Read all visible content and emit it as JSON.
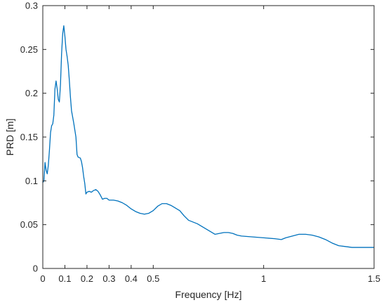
{
  "chart_data": {
    "type": "line",
    "xlabel": "Frequency [Hz]",
    "ylabel": "PRD [m]",
    "xlim": [
      0,
      1.5
    ],
    "ylim": [
      0,
      0.3
    ],
    "x_ticks": [
      {
        "value": 0,
        "label": "0"
      },
      {
        "value": 0.1,
        "label": "0.1"
      },
      {
        "value": 0.2,
        "label": "0.2"
      },
      {
        "value": 0.3,
        "label": "0.3"
      },
      {
        "value": 0.4,
        "label": "0.4"
      },
      {
        "value": 0.5,
        "label": "0.5"
      },
      {
        "value": 1,
        "label": "1"
      },
      {
        "value": 1.5,
        "label": "1.5"
      }
    ],
    "y_ticks": [
      {
        "value": 0,
        "label": "0"
      },
      {
        "value": 0.05,
        "label": "0.05"
      },
      {
        "value": 0.1,
        "label": "0.1"
      },
      {
        "value": 0.15,
        "label": "0.15"
      },
      {
        "value": 0.2,
        "label": "0.2"
      },
      {
        "value": 0.25,
        "label": "0.25"
      },
      {
        "value": 0.3,
        "label": "0.3"
      }
    ],
    "grid": false,
    "legend": "none",
    "series": [
      {
        "color": "#0072BD",
        "points": [
          [
            0.0,
            0.098
          ],
          [
            0.005,
            0.1
          ],
          [
            0.01,
            0.121
          ],
          [
            0.015,
            0.112
          ],
          [
            0.02,
            0.108
          ],
          [
            0.025,
            0.118
          ],
          [
            0.03,
            0.135
          ],
          [
            0.035,
            0.155
          ],
          [
            0.04,
            0.163
          ],
          [
            0.045,
            0.165
          ],
          [
            0.05,
            0.175
          ],
          [
            0.055,
            0.205
          ],
          [
            0.06,
            0.214
          ],
          [
            0.065,
            0.205
          ],
          [
            0.07,
            0.193
          ],
          [
            0.075,
            0.19
          ],
          [
            0.08,
            0.21
          ],
          [
            0.085,
            0.245
          ],
          [
            0.09,
            0.268
          ],
          [
            0.095,
            0.277
          ],
          [
            0.1,
            0.265
          ],
          [
            0.105,
            0.25
          ],
          [
            0.11,
            0.242
          ],
          [
            0.115,
            0.232
          ],
          [
            0.12,
            0.215
          ],
          [
            0.125,
            0.196
          ],
          [
            0.13,
            0.18
          ],
          [
            0.14,
            0.166
          ],
          [
            0.15,
            0.15
          ],
          [
            0.155,
            0.13
          ],
          [
            0.16,
            0.127
          ],
          [
            0.17,
            0.126
          ],
          [
            0.175,
            0.122
          ],
          [
            0.18,
            0.115
          ],
          [
            0.185,
            0.105
          ],
          [
            0.19,
            0.097
          ],
          [
            0.195,
            0.085
          ],
          [
            0.2,
            0.087
          ],
          [
            0.21,
            0.088
          ],
          [
            0.22,
            0.087
          ],
          [
            0.23,
            0.089
          ],
          [
            0.24,
            0.09
          ],
          [
            0.25,
            0.088
          ],
          [
            0.26,
            0.084
          ],
          [
            0.27,
            0.079
          ],
          [
            0.28,
            0.08
          ],
          [
            0.29,
            0.08
          ],
          [
            0.3,
            0.078
          ],
          [
            0.32,
            0.078
          ],
          [
            0.34,
            0.077
          ],
          [
            0.36,
            0.075
          ],
          [
            0.38,
            0.072
          ],
          [
            0.4,
            0.068
          ],
          [
            0.42,
            0.065
          ],
          [
            0.44,
            0.063
          ],
          [
            0.46,
            0.062
          ],
          [
            0.48,
            0.063
          ],
          [
            0.5,
            0.066
          ],
          [
            0.52,
            0.071
          ],
          [
            0.54,
            0.074
          ],
          [
            0.56,
            0.074
          ],
          [
            0.58,
            0.072
          ],
          [
            0.6,
            0.069
          ],
          [
            0.62,
            0.066
          ],
          [
            0.64,
            0.06
          ],
          [
            0.66,
            0.055
          ],
          [
            0.68,
            0.053
          ],
          [
            0.7,
            0.051
          ],
          [
            0.72,
            0.048
          ],
          [
            0.74,
            0.045
          ],
          [
            0.76,
            0.042
          ],
          [
            0.78,
            0.039
          ],
          [
            0.8,
            0.04
          ],
          [
            0.82,
            0.041
          ],
          [
            0.84,
            0.041
          ],
          [
            0.86,
            0.04
          ],
          [
            0.88,
            0.038
          ],
          [
            0.9,
            0.037
          ],
          [
            0.95,
            0.036
          ],
          [
            1.0,
            0.035
          ],
          [
            1.05,
            0.034
          ],
          [
            1.08,
            0.033
          ],
          [
            1.1,
            0.035
          ],
          [
            1.13,
            0.037
          ],
          [
            1.16,
            0.039
          ],
          [
            1.19,
            0.039
          ],
          [
            1.22,
            0.038
          ],
          [
            1.25,
            0.036
          ],
          [
            1.28,
            0.033
          ],
          [
            1.31,
            0.029
          ],
          [
            1.34,
            0.026
          ],
          [
            1.37,
            0.025
          ],
          [
            1.4,
            0.024
          ],
          [
            1.43,
            0.024
          ],
          [
            1.46,
            0.024
          ],
          [
            1.5,
            0.024
          ]
        ]
      }
    ]
  }
}
